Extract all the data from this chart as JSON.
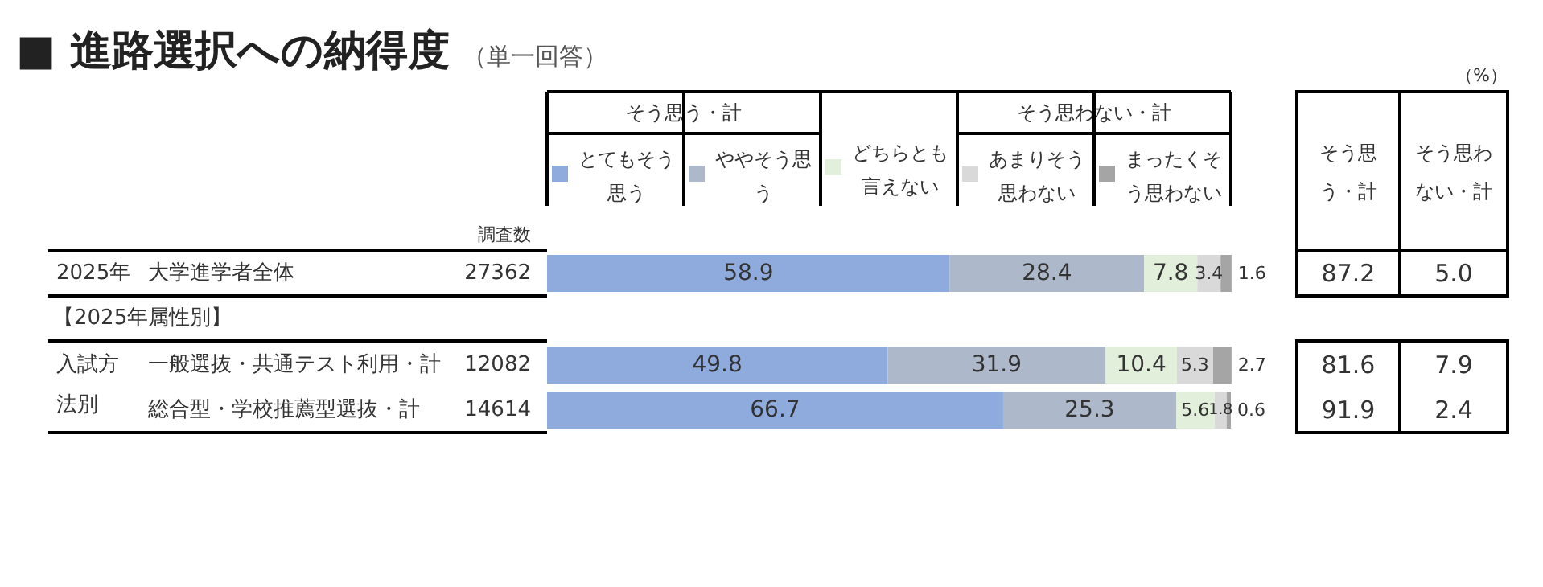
{
  "chart_data": {
    "type": "bar",
    "orientation": "horizontal",
    "stacked": true,
    "data_labels": true,
    "legend": "top",
    "title": "■ 進路選択への納得度",
    "subtitle": "（単一回答）",
    "categories": [
      "大学進学者全体",
      "一般選抜・共通テスト利用・計",
      "総合型・学校推薦型選抜・計"
    ],
    "series": [
      {
        "name": "とてもそう思う",
        "color": "#8faadc",
        "values": [
          58.9,
          49.8,
          66.7
        ]
      },
      {
        "name": "ややそう思う",
        "color": "#adb9ca",
        "values": [
          28.4,
          31.9,
          25.3
        ]
      },
      {
        "name": "どちらとも言えない",
        "color": "#e2efda",
        "values": [
          7.8,
          10.4,
          5.6
        ]
      },
      {
        "name": "あまりそう思わない",
        "color": "#d9d9d9",
        "values": [
          3.4,
          5.3,
          1.8
        ]
      },
      {
        "name": "まったくそう思わない",
        "color": "#a5a5a5",
        "values": [
          1.6,
          2.7,
          0.6
        ]
      }
    ],
    "annotations": [
      "（%）",
      "調査数",
      "2025年",
      "27362",
      "【2025年属性別】",
      "入試方法別",
      "12082",
      "14614",
      "そう思う・計",
      "そう思わない・計",
      "そう思う・計",
      "そう思わない・計",
      "87.2",
      "5.0",
      "81.6",
      "7.9",
      "91.9",
      "2.4"
    ]
  }
}
